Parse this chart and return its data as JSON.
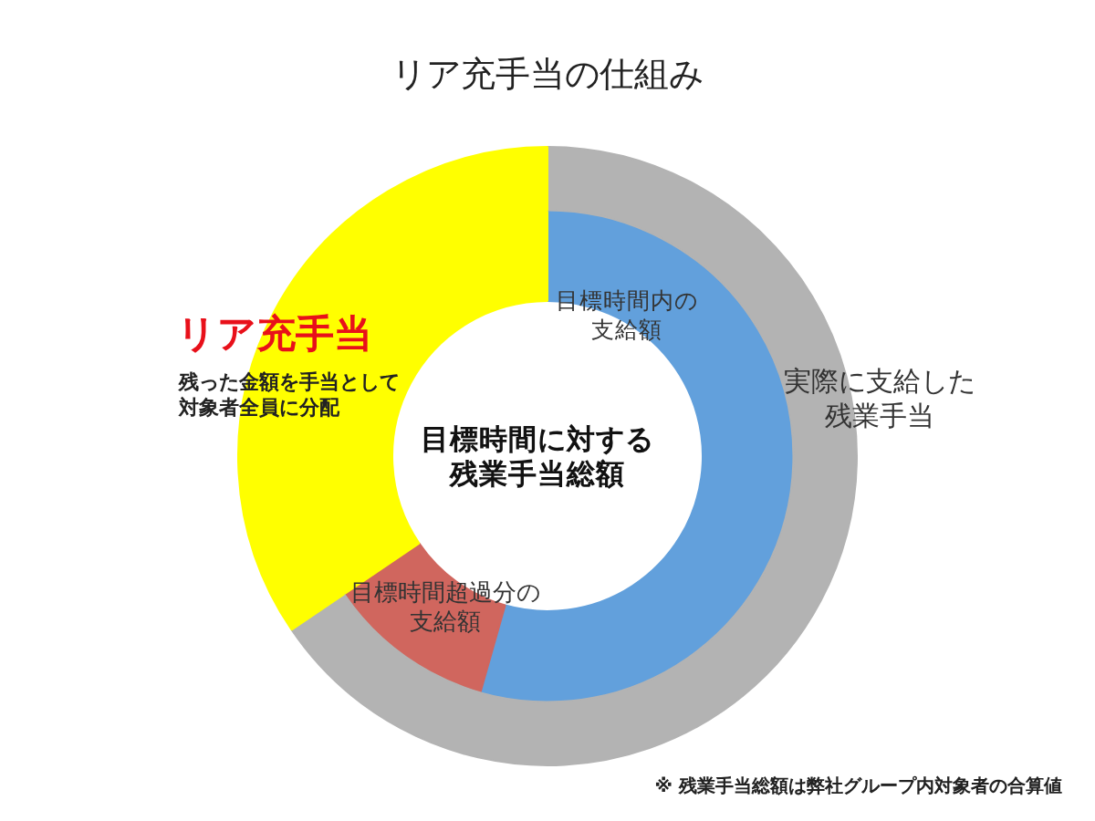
{
  "chart_data": {
    "type": "donut",
    "title": "リア充手当の仕組み",
    "legend": false,
    "categories": [
      "目標時間内の支給額",
      "目標時間超過分の支給額",
      null,
      "リア充手当"
    ],
    "series": [
      {
        "values": [
          54.4,
          11.1,
          null,
          34.5
        ],
        "colors": [
          "#62a0dc",
          "#d0665e",
          null,
          "#ffff00"
        ]
      },
      {
        "values": [
          null,
          null,
          65.5,
          34.5
        ],
        "colors": [
          null,
          null,
          "#b3b3b3",
          "#ffff00"
        ]
      }
    ],
    "annotations": [
      "実際に支給した残業手当",
      "目標時間に対する残業手当総額",
      "残った金額を手当として対象者全員に分配",
      "※ 残業手当総額は弊社グループ内対象者の合算値"
    ]
  }
}
